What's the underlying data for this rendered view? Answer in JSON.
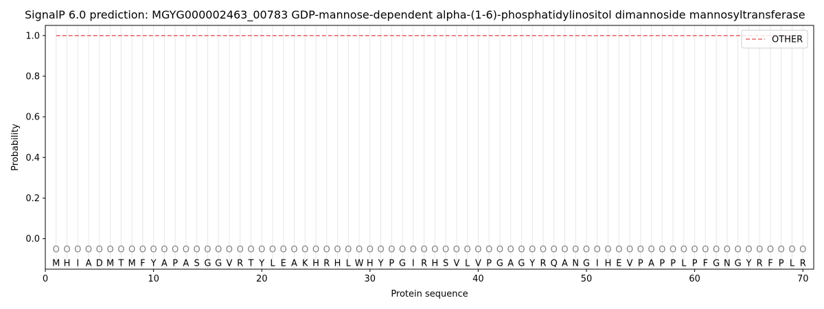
{
  "chart_data": {
    "type": "line",
    "title": "SignalP 6.0 prediction: MGYG000002463_00783 GDP-mannose-dependent alpha-(1-6)-phosphatidylinositol dimannoside mannosyltransferase",
    "xlabel": "Protein sequence",
    "ylabel": "Probability",
    "xlim": [
      0,
      71
    ],
    "ylim": [
      -0.15,
      1.05
    ],
    "xticks": [
      0,
      10,
      20,
      30,
      40,
      50,
      60,
      70
    ],
    "yticks": [
      0.0,
      0.2,
      0.4,
      0.6,
      0.8,
      1.0
    ],
    "ytick_labels": [
      "0.0",
      "0.2",
      "0.4",
      "0.6",
      "0.8",
      "1.0"
    ],
    "sequence": [
      "M",
      "H",
      "I",
      "A",
      "D",
      "M",
      "T",
      "M",
      "F",
      "Y",
      "A",
      "P",
      "A",
      "S",
      "G",
      "G",
      "V",
      "R",
      "T",
      "Y",
      "L",
      "E",
      "A",
      "K",
      "H",
      "R",
      "H",
      "L",
      "W",
      "H",
      "Y",
      "P",
      "G",
      "I",
      "R",
      "H",
      "S",
      "V",
      "L",
      "V",
      "P",
      "G",
      "A",
      "G",
      "Y",
      "R",
      "Q",
      "A",
      "N",
      "G",
      "I",
      "H",
      "E",
      "V",
      "P",
      "A",
      "P",
      "P",
      "L",
      "P",
      "F",
      "G",
      "N",
      "G",
      "Y",
      "R",
      "F",
      "P",
      "L",
      "R"
    ],
    "region_marker": "O",
    "marker_y": -0.05,
    "series": [
      {
        "name": "OTHER",
        "color": "#e8696b",
        "style": "dashed",
        "x_start": 1,
        "x_end": 70,
        "y": [
          1.0,
          1.0
        ]
      }
    ],
    "legend_position": "top-right",
    "grid": "vertical-per-residue"
  }
}
